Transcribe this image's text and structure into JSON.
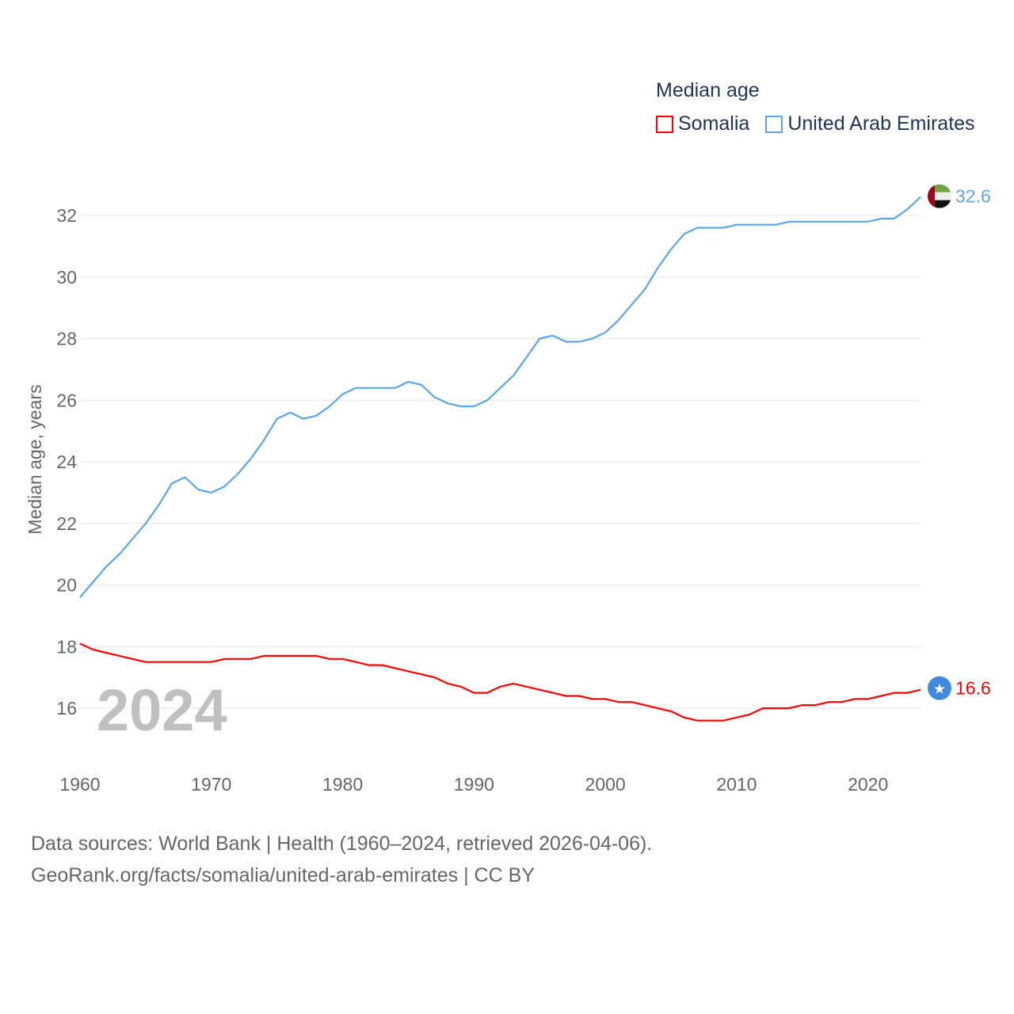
{
  "chart_data": {
    "type": "line",
    "title": "Median age",
    "ylabel": "Median age, years",
    "xlabel": "",
    "xlim": [
      1960,
      2024
    ],
    "ylim": [
      15,
      33
    ],
    "grid": true,
    "legend_placement": "top-right",
    "x_ticks": [
      "1960",
      "1970",
      "1980",
      "1990",
      "2000",
      "2010",
      "2020"
    ],
    "y_ticks": [
      "16",
      "18",
      "20",
      "22",
      "24",
      "26",
      "28",
      "30",
      "32"
    ],
    "year_watermark": "2024",
    "x": [
      1960,
      1961,
      1962,
      1963,
      1964,
      1965,
      1966,
      1967,
      1968,
      1969,
      1970,
      1971,
      1972,
      1973,
      1974,
      1975,
      1976,
      1977,
      1978,
      1979,
      1980,
      1981,
      1982,
      1983,
      1984,
      1985,
      1986,
      1987,
      1988,
      1989,
      1990,
      1991,
      1992,
      1993,
      1994,
      1995,
      1996,
      1997,
      1998,
      1999,
      2000,
      2001,
      2002,
      2003,
      2004,
      2005,
      2006,
      2007,
      2008,
      2009,
      2010,
      2011,
      2012,
      2013,
      2014,
      2015,
      2016,
      2017,
      2018,
      2019,
      2020,
      2021,
      2022,
      2023,
      2024
    ],
    "series": [
      {
        "name": "Somalia",
        "color": "#ff0000",
        "end_label": "16.6",
        "flag_icon": "somalia-flag-icon",
        "values": [
          18.1,
          17.9,
          17.8,
          17.7,
          17.6,
          17.5,
          17.5,
          17.5,
          17.5,
          17.5,
          17.5,
          17.6,
          17.6,
          17.6,
          17.7,
          17.7,
          17.7,
          17.7,
          17.7,
          17.6,
          17.6,
          17.5,
          17.4,
          17.4,
          17.3,
          17.2,
          17.1,
          17.0,
          16.8,
          16.7,
          16.5,
          16.5,
          16.7,
          16.8,
          16.7,
          16.6,
          16.5,
          16.4,
          16.4,
          16.3,
          16.3,
          16.2,
          16.2,
          16.1,
          16.0,
          15.9,
          15.7,
          15.6,
          15.6,
          15.6,
          15.7,
          15.8,
          16.0,
          16.0,
          16.0,
          16.1,
          16.1,
          16.2,
          16.2,
          16.3,
          16.3,
          16.4,
          16.5,
          16.5,
          16.6
        ]
      },
      {
        "name": "United Arab Emirates",
        "color": "#5aa5ec",
        "end_label": "32.6",
        "flag_icon": "uae-flag-icon",
        "values": [
          19.6,
          20.1,
          20.6,
          21.0,
          21.5,
          22.0,
          22.6,
          23.3,
          23.5,
          23.1,
          23.0,
          23.2,
          23.6,
          24.1,
          24.7,
          25.4,
          25.6,
          25.4,
          25.5,
          25.8,
          26.2,
          26.4,
          26.4,
          26.4,
          26.4,
          26.6,
          26.5,
          26.1,
          25.9,
          25.8,
          25.8,
          26.0,
          26.4,
          26.8,
          27.4,
          28.0,
          28.1,
          27.9,
          27.9,
          28.0,
          28.2,
          28.6,
          29.1,
          29.6,
          30.3,
          30.9,
          31.4,
          31.6,
          31.6,
          31.6,
          31.7,
          31.7,
          31.7,
          31.7,
          31.8,
          31.8,
          31.8,
          31.8,
          31.8,
          31.8,
          31.8,
          31.9,
          31.9,
          32.2,
          32.6
        ]
      }
    ]
  },
  "footer": {
    "line1": "Data sources: World Bank | Health (1960–2024, retrieved 2026-04-06).",
    "line2": "GeoRank.org/facts/somalia/united-arab-emirates | CC BY"
  }
}
